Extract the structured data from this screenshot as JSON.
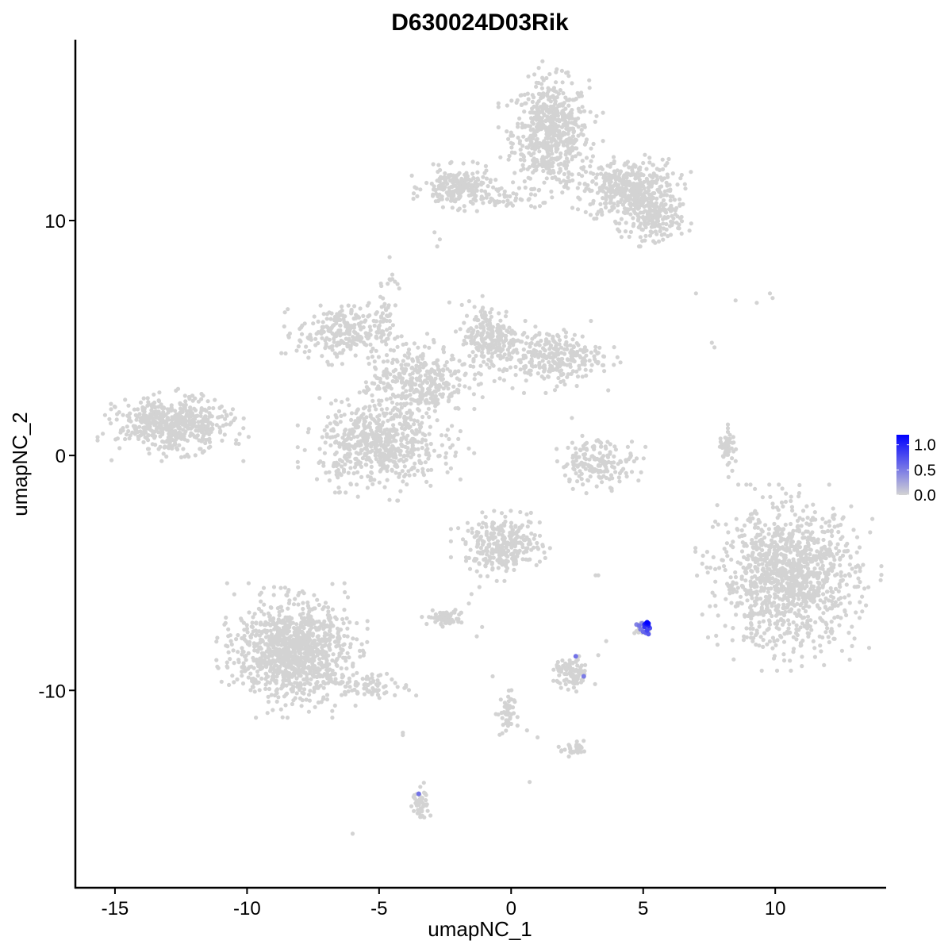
{
  "chart_data": {
    "type": "scatter",
    "title": "D630024D03Rik",
    "xlabel": "umapNC_1",
    "ylabel": "umapNC_2",
    "xlim": [
      -16.5,
      14.2
    ],
    "ylim": [
      -18.4,
      17.7
    ],
    "x_ticks": [
      -15,
      -10,
      -5,
      0,
      5,
      10
    ],
    "x_tick_labels": [
      "-15",
      "-10",
      "-5",
      "0",
      "5",
      "10"
    ],
    "y_ticks": [
      -10,
      0,
      10
    ],
    "y_tick_labels": [
      "-10",
      "0",
      "10"
    ],
    "grid": false,
    "legend": {
      "position": "right",
      "min": 0.0,
      "max": 1.2,
      "ticks": [
        0.0,
        0.5,
        1.0
      ],
      "tick_labels": [
        "0.0",
        "0.5",
        "1.0"
      ],
      "low_color": "#d3d3d3",
      "high_color": "#0000ff"
    },
    "base_color": "#d3d3d3",
    "clusters": [
      {
        "name": "top-cluster-main",
        "cx": 1.5,
        "cy": 13.7,
        "sx": 0.9,
        "sy": 1.4,
        "n": 600
      },
      {
        "name": "top-cluster-right",
        "cx": 4.5,
        "cy": 11.3,
        "sx": 1.1,
        "sy": 0.8,
        "n": 450
      },
      {
        "name": "top-cluster-arm",
        "cx": 5.5,
        "cy": 10.0,
        "sx": 0.6,
        "sy": 0.5,
        "n": 150
      },
      {
        "name": "top-cluster-left",
        "cx": -2.0,
        "cy": 11.4,
        "sx": 0.8,
        "sy": 0.5,
        "n": 220
      },
      {
        "name": "top-bridge",
        "cx": -0.3,
        "cy": 11.0,
        "sx": 0.8,
        "sy": 0.3,
        "n": 40
      },
      {
        "name": "mid-left-arm",
        "cx": -6.5,
        "cy": 5.2,
        "sx": 1.0,
        "sy": 0.7,
        "n": 230
      },
      {
        "name": "mid-upper-arm",
        "cx": -0.8,
        "cy": 5.0,
        "sx": 0.7,
        "sy": 0.9,
        "n": 220
      },
      {
        "name": "mid-right-arm",
        "cx": 1.5,
        "cy": 4.2,
        "sx": 1.2,
        "sy": 0.7,
        "n": 280
      },
      {
        "name": "mid-center",
        "cx": -3.5,
        "cy": 3.2,
        "sx": 1.1,
        "sy": 0.9,
        "n": 330
      },
      {
        "name": "mid-lower-blob",
        "cx": -5.0,
        "cy": 0.5,
        "sx": 1.4,
        "sy": 1.1,
        "n": 600
      },
      {
        "name": "mid-stalk",
        "cx": -4.8,
        "cy": 5.8,
        "sx": 0.3,
        "sy": 1.2,
        "n": 50
      },
      {
        "name": "far-left-cluster",
        "cx": -12.8,
        "cy": 1.3,
        "sx": 1.3,
        "sy": 0.7,
        "n": 520
      },
      {
        "name": "small-arc-cluster",
        "cx": 3.3,
        "cy": -0.3,
        "sx": 0.9,
        "sy": 0.6,
        "n": 170
      },
      {
        "name": "right-thin-arc",
        "cx": 8.2,
        "cy": 0.4,
        "sx": 0.2,
        "sy": 0.6,
        "n": 45
      },
      {
        "name": "right-large-cluster",
        "cx": 10.5,
        "cy": -5.2,
        "sx": 1.6,
        "sy": 1.8,
        "n": 1150
      },
      {
        "name": "center-small-cluster",
        "cx": -0.3,
        "cy": -3.8,
        "sx": 0.9,
        "sy": 0.7,
        "n": 300
      },
      {
        "name": "left-lower-cluster",
        "cx": -8.3,
        "cy": -8.3,
        "sx": 1.3,
        "sy": 1.3,
        "n": 1050
      },
      {
        "name": "left-lower-tail",
        "cx": -5.3,
        "cy": -9.8,
        "sx": 0.9,
        "sy": 0.3,
        "n": 80
      },
      {
        "name": "small-grey-a",
        "cx": -2.5,
        "cy": -6.9,
        "sx": 0.4,
        "sy": 0.2,
        "n": 70
      },
      {
        "name": "small-grey-b",
        "cx": 2.3,
        "cy": -9.3,
        "sx": 0.4,
        "sy": 0.4,
        "n": 90
      },
      {
        "name": "small-grey-c",
        "cx": 2.4,
        "cy": -12.5,
        "sx": 0.3,
        "sy": 0.2,
        "n": 30
      },
      {
        "name": "small-grey-d",
        "cx": -3.4,
        "cy": -14.9,
        "sx": 0.2,
        "sy": 0.5,
        "n": 45
      },
      {
        "name": "small-grey-e",
        "cx": -0.2,
        "cy": -11.0,
        "sx": 0.2,
        "sy": 0.6,
        "n": 45
      },
      {
        "name": "small-grey-f",
        "cx": 4.9,
        "cy": -7.4,
        "sx": 0.15,
        "sy": 0.2,
        "n": 20
      }
    ],
    "sparse_points": [
      [
        -4.4,
        7.4
      ],
      [
        -4.5,
        7.7
      ],
      [
        -4.6,
        7.5
      ],
      [
        -4.3,
        7.3
      ],
      [
        -2.8,
        8.9
      ],
      [
        -2.9,
        9.5
      ],
      [
        -2.7,
        9.2
      ],
      [
        7.0,
        6.9
      ],
      [
        8.5,
        6.6
      ],
      [
        9.3,
        6.5
      ],
      [
        9.8,
        6.9
      ],
      [
        9.9,
        6.7
      ],
      [
        7.6,
        4.8
      ],
      [
        7.7,
        4.6
      ],
      [
        2.3,
        1.6
      ],
      [
        3.3,
        -5.1
      ],
      [
        3.2,
        -5.1
      ],
      [
        -1.1,
        -7.3
      ],
      [
        -1.3,
        -7.7
      ],
      [
        -0.7,
        -9.4
      ],
      [
        1.0,
        -12.0
      ],
      [
        1.8,
        -12.4
      ],
      [
        0.6,
        -11.7
      ],
      [
        -4.1,
        -11.8
      ],
      [
        -4.1,
        -11.9
      ],
      [
        -6.0,
        -16.1
      ],
      [
        0.7,
        -13.9
      ],
      [
        -0.7,
        -4.8
      ],
      [
        -1.2,
        -5.6
      ],
      [
        -1.6,
        -6.3
      ],
      [
        -1.9,
        -6.7
      ],
      [
        -1.5,
        -5.9
      ],
      [
        3.3,
        -8.5
      ],
      [
        3.6,
        -7.9
      ],
      [
        -10.5,
        1.5
      ],
      [
        -10.6,
        1.4
      ],
      [
        -3.2,
        1.8
      ],
      [
        -2.8,
        1.5
      ],
      [
        -2.4,
        1.1
      ],
      [
        -2.0,
        0.7
      ],
      [
        -1.6,
        0.3
      ],
      [
        -1.4,
        0.1
      ]
    ],
    "expressing_points": [
      [
        5.15,
        -7.1,
        1.25
      ],
      [
        5.1,
        -7.15,
        1.1
      ],
      [
        5.2,
        -7.25,
        1.0
      ],
      [
        5.05,
        -7.3,
        0.9
      ],
      [
        5.15,
        -7.45,
        0.8
      ],
      [
        5.2,
        -7.6,
        0.7
      ],
      [
        5.0,
        -7.5,
        0.6
      ],
      [
        4.85,
        -7.25,
        0.55
      ],
      [
        4.75,
        -7.2,
        0.45
      ],
      [
        4.9,
        -7.4,
        0.5
      ],
      [
        5.1,
        -7.55,
        0.65
      ],
      [
        5.25,
        -7.35,
        0.75
      ],
      [
        5.05,
        -7.2,
        0.95
      ],
      [
        4.95,
        -7.15,
        0.4
      ],
      [
        5.2,
        -7.15,
        1.15
      ],
      [
        2.45,
        -8.55,
        0.55
      ],
      [
        2.75,
        -9.4,
        0.5
      ],
      [
        -3.5,
        -14.4,
        0.55
      ]
    ]
  }
}
